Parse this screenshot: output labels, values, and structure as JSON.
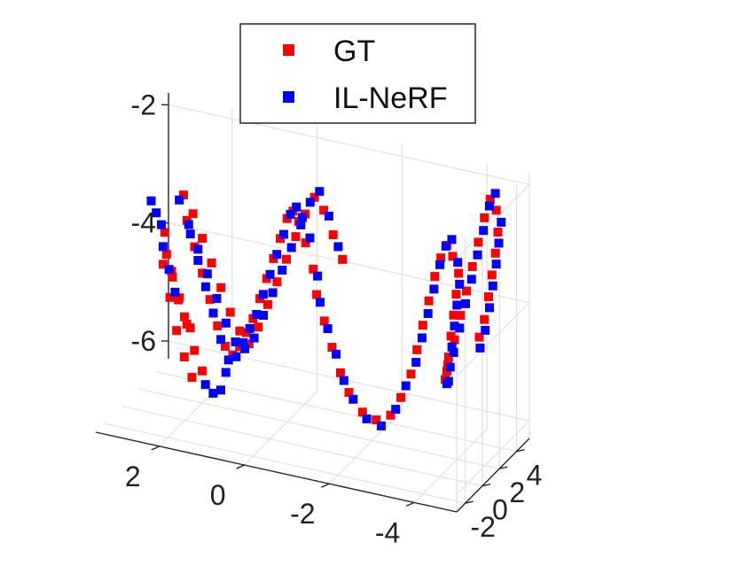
{
  "chart_data": {
    "type": "scatter",
    "projection": "3d",
    "title": "",
    "xlabel": "",
    "ylabel": "",
    "zlabel": "",
    "grid": true,
    "legend_position": "top",
    "x_ticks": [
      "2",
      "0",
      "-2",
      "-4"
    ],
    "y_ticks": [
      "-2",
      "0",
      "2",
      "4"
    ],
    "z_ticks": [
      "-2",
      "-4",
      "-6"
    ],
    "xlim": [
      -5,
      3.5
    ],
    "ylim": [
      -3,
      5.5
    ],
    "zlim": [
      -6.3,
      -1.8
    ],
    "series": [
      {
        "name": "GT",
        "color": "#ff0000",
        "points": [
          [
            -1.2,
            -0.9,
            -3.1
          ],
          [
            -1.3,
            -1.0,
            -3.5
          ],
          [
            -1.5,
            -1.1,
            -3.9
          ],
          [
            -1.7,
            -1.2,
            -4.3
          ],
          [
            -1.9,
            -1.2,
            -4.7
          ],
          [
            -2.1,
            -1.2,
            -5.0
          ],
          [
            -2.4,
            -1.1,
            -5.3
          ],
          [
            -2.7,
            -1.0,
            -5.4
          ],
          [
            -3.0,
            -0.8,
            -5.3
          ],
          [
            -3.2,
            -0.6,
            -5.0
          ],
          [
            -3.4,
            -0.4,
            -4.6
          ],
          [
            -3.5,
            -0.2,
            -4.2
          ],
          [
            -3.6,
            0.0,
            -3.8
          ],
          [
            -3.7,
            0.2,
            -3.4
          ],
          [
            -3.8,
            0.4,
            -3.0
          ],
          [
            -3.9,
            0.6,
            -2.7
          ],
          [
            -4.0,
            0.8,
            -2.5
          ],
          [
            -4.1,
            1.0,
            -2.7
          ],
          [
            -4.2,
            1.2,
            -3.0
          ],
          [
            -4.1,
            1.4,
            -3.4
          ],
          [
            -4.0,
            1.6,
            -3.8
          ],
          [
            -3.9,
            1.8,
            -4.2
          ],
          [
            -3.8,
            2.0,
            -4.6
          ],
          [
            -3.7,
            2.3,
            -4.9
          ],
          [
            -3.6,
            2.6,
            -5.1
          ],
          [
            -3.6,
            2.9,
            -4.9
          ],
          [
            -3.7,
            3.2,
            -4.5
          ],
          [
            -3.8,
            3.4,
            -4.1
          ],
          [
            -3.9,
            3.6,
            -3.7
          ],
          [
            -4.0,
            3.8,
            -3.3
          ],
          [
            -4.1,
            4.0,
            -2.9
          ],
          [
            -4.2,
            4.2,
            -2.5
          ],
          [
            -4.3,
            4.4,
            -2.2
          ],
          [
            -4.4,
            4.6,
            -2.4
          ],
          [
            -4.4,
            4.8,
            -2.8
          ],
          [
            -4.3,
            5.0,
            -3.2
          ],
          [
            -4.2,
            5.1,
            -3.6
          ],
          [
            -4.1,
            5.2,
            -4.0
          ],
          [
            -4.0,
            5.2,
            -4.4
          ],
          [
            -3.9,
            5.1,
            -4.7
          ],
          [
            -1.0,
            -0.8,
            -2.7
          ],
          [
            -0.8,
            -0.6,
            -2.4
          ],
          [
            -0.6,
            -0.3,
            -2.3
          ],
          [
            -0.4,
            0.0,
            -2.5
          ],
          [
            -0.2,
            0.2,
            -2.9
          ],
          [
            0.0,
            0.4,
            -3.3
          ],
          [
            0.2,
            0.6,
            -3.7
          ],
          [
            0.4,
            0.8,
            -4.1
          ],
          [
            0.6,
            1.0,
            -4.5
          ],
          [
            0.8,
            1.2,
            -4.8
          ],
          [
            1.0,
            1.4,
            -5.1
          ],
          [
            1.2,
            1.6,
            -5.3
          ],
          [
            1.4,
            1.7,
            -5.2
          ],
          [
            1.6,
            1.8,
            -4.9
          ],
          [
            1.8,
            1.9,
            -4.5
          ],
          [
            2.0,
            2.0,
            -4.1
          ],
          [
            2.2,
            2.1,
            -3.7
          ],
          [
            2.4,
            2.2,
            -3.3
          ],
          [
            2.5,
            2.3,
            -2.9
          ],
          [
            2.3,
            2.4,
            -3.2
          ],
          [
            2.1,
            2.5,
            -3.6
          ],
          [
            1.9,
            2.6,
            -4.0
          ],
          [
            1.7,
            2.7,
            -4.4
          ],
          [
            1.5,
            2.8,
            -4.8
          ],
          [
            1.3,
            2.9,
            -5.1
          ],
          [
            1.1,
            3.0,
            -5.3
          ],
          [
            0.9,
            3.1,
            -5.0
          ],
          [
            0.7,
            3.2,
            -4.6
          ],
          [
            0.5,
            3.3,
            -4.2
          ],
          [
            0.3,
            3.4,
            -3.8
          ],
          [
            0.1,
            3.5,
            -3.4
          ],
          [
            -0.1,
            3.6,
            -3.0
          ],
          [
            -0.3,
            3.7,
            -2.7
          ],
          [
            -0.5,
            3.8,
            -2.9
          ],
          [
            -0.7,
            3.9,
            -3.3
          ],
          [
            -0.9,
            4.0,
            -3.7
          ],
          [
            2.6,
            0.6,
            -3.3
          ],
          [
            2.6,
            0.8,
            -3.7
          ],
          [
            2.5,
            1.0,
            -4.1
          ],
          [
            2.4,
            1.2,
            -4.5
          ],
          [
            2.3,
            1.4,
            -4.8
          ],
          [
            2.2,
            1.6,
            -5.0
          ],
          [
            2.4,
            0.4,
            -3.9
          ],
          [
            2.2,
            0.3,
            -4.3
          ],
          [
            2.0,
            0.2,
            -4.7
          ],
          [
            1.8,
            0.1,
            -5.1
          ],
          [
            1.6,
            0.0,
            -5.4
          ],
          [
            2.7,
            0.9,
            -3.9
          ],
          [
            2.5,
            0.7,
            -4.4
          ],
          [
            2.3,
            0.5,
            -4.9
          ],
          [
            2.1,
            0.4,
            -5.3
          ],
          [
            1.9,
            0.3,
            -5.6
          ]
        ]
      },
      {
        "name": "IL-NeRF",
        "color": "#0000ff",
        "points": [
          [
            -1.3,
            -0.9,
            -3.2
          ],
          [
            -1.4,
            -1.1,
            -3.6
          ],
          [
            -1.6,
            -1.2,
            -4.0
          ],
          [
            -1.8,
            -1.2,
            -4.4
          ],
          [
            -2.0,
            -1.3,
            -4.8
          ],
          [
            -2.2,
            -1.2,
            -5.1
          ],
          [
            -2.5,
            -1.1,
            -5.4
          ],
          [
            -2.8,
            -0.9,
            -5.5
          ],
          [
            -3.1,
            -0.7,
            -5.2
          ],
          [
            -3.3,
            -0.5,
            -4.8
          ],
          [
            -3.5,
            -0.3,
            -4.4
          ],
          [
            -3.6,
            -0.1,
            -4.0
          ],
          [
            -3.7,
            0.1,
            -3.6
          ],
          [
            -3.8,
            0.3,
            -3.2
          ],
          [
            -3.9,
            0.5,
            -2.8
          ],
          [
            -4.0,
            0.7,
            -2.5
          ],
          [
            -4.1,
            0.9,
            -2.4
          ],
          [
            -4.2,
            1.1,
            -2.8
          ],
          [
            -4.2,
            1.3,
            -3.2
          ],
          [
            -4.1,
            1.5,
            -3.6
          ],
          [
            -4.0,
            1.7,
            -4.0
          ],
          [
            -3.9,
            1.9,
            -4.4
          ],
          [
            -3.8,
            2.2,
            -4.8
          ],
          [
            -3.7,
            2.5,
            -5.1
          ],
          [
            -3.6,
            2.8,
            -5.2
          ],
          [
            -3.7,
            3.1,
            -4.7
          ],
          [
            -3.8,
            3.3,
            -4.3
          ],
          [
            -3.9,
            3.5,
            -3.9
          ],
          [
            -4.0,
            3.7,
            -3.5
          ],
          [
            -4.1,
            3.9,
            -3.1
          ],
          [
            -4.2,
            4.1,
            -2.7
          ],
          [
            -4.3,
            4.3,
            -2.3
          ],
          [
            -4.4,
            4.5,
            -2.1
          ],
          [
            -4.5,
            4.7,
            -2.6
          ],
          [
            -4.4,
            4.9,
            -3.0
          ],
          [
            -4.3,
            5.1,
            -3.4
          ],
          [
            -4.2,
            5.2,
            -3.8
          ],
          [
            -4.1,
            5.3,
            -4.2
          ],
          [
            -4.0,
            5.3,
            -4.6
          ],
          [
            -3.9,
            5.2,
            -4.9
          ],
          [
            -1.1,
            -0.8,
            -2.6
          ],
          [
            -0.9,
            -0.7,
            -2.3
          ],
          [
            -0.7,
            -0.4,
            -2.2
          ],
          [
            -0.5,
            -0.1,
            -2.4
          ],
          [
            -0.3,
            0.1,
            -2.8
          ],
          [
            -0.1,
            0.3,
            -3.2
          ],
          [
            0.1,
            0.5,
            -3.6
          ],
          [
            0.3,
            0.7,
            -4.0
          ],
          [
            0.5,
            0.9,
            -4.4
          ],
          [
            0.7,
            1.1,
            -4.7
          ],
          [
            0.9,
            1.3,
            -5.0
          ],
          [
            1.1,
            1.5,
            -5.3
          ],
          [
            1.3,
            1.6,
            -5.4
          ],
          [
            1.5,
            1.7,
            -5.1
          ],
          [
            1.7,
            1.8,
            -4.7
          ],
          [
            1.9,
            1.9,
            -4.3
          ],
          [
            2.1,
            2.0,
            -3.9
          ],
          [
            2.3,
            2.1,
            -3.5
          ],
          [
            2.6,
            2.3,
            -3.0
          ],
          [
            2.4,
            2.4,
            -3.4
          ],
          [
            2.2,
            2.5,
            -3.8
          ],
          [
            2.0,
            2.6,
            -4.2
          ],
          [
            1.8,
            2.7,
            -4.6
          ],
          [
            1.6,
            2.8,
            -5.0
          ],
          [
            1.4,
            2.9,
            -5.3
          ],
          [
            1.2,
            3.0,
            -5.4
          ],
          [
            1.0,
            3.1,
            -5.2
          ],
          [
            0.8,
            3.2,
            -4.8
          ],
          [
            0.6,
            3.3,
            -4.4
          ],
          [
            0.4,
            3.4,
            -4.0
          ],
          [
            0.2,
            3.5,
            -3.6
          ],
          [
            0.0,
            3.6,
            -3.2
          ],
          [
            -0.2,
            3.7,
            -2.8
          ],
          [
            -0.4,
            3.8,
            -2.6
          ],
          [
            -0.6,
            3.9,
            -3.0
          ],
          [
            -0.8,
            4.0,
            -3.5
          ],
          [
            2.7,
            0.7,
            -3.2
          ],
          [
            2.7,
            0.9,
            -3.6
          ],
          [
            2.6,
            1.1,
            -4.0
          ],
          [
            2.5,
            1.3,
            -4.4
          ],
          [
            1.5,
            -0.1,
            -5.6
          ],
          [
            1.3,
            -0.2,
            -5.7
          ],
          [
            1.1,
            -0.3,
            -5.6
          ],
          [
            1.0,
            -0.2,
            -5.3
          ],
          [
            2.9,
            0.5,
            -2.8
          ],
          [
            2.8,
            0.6,
            -3.0
          ]
        ]
      }
    ]
  }
}
